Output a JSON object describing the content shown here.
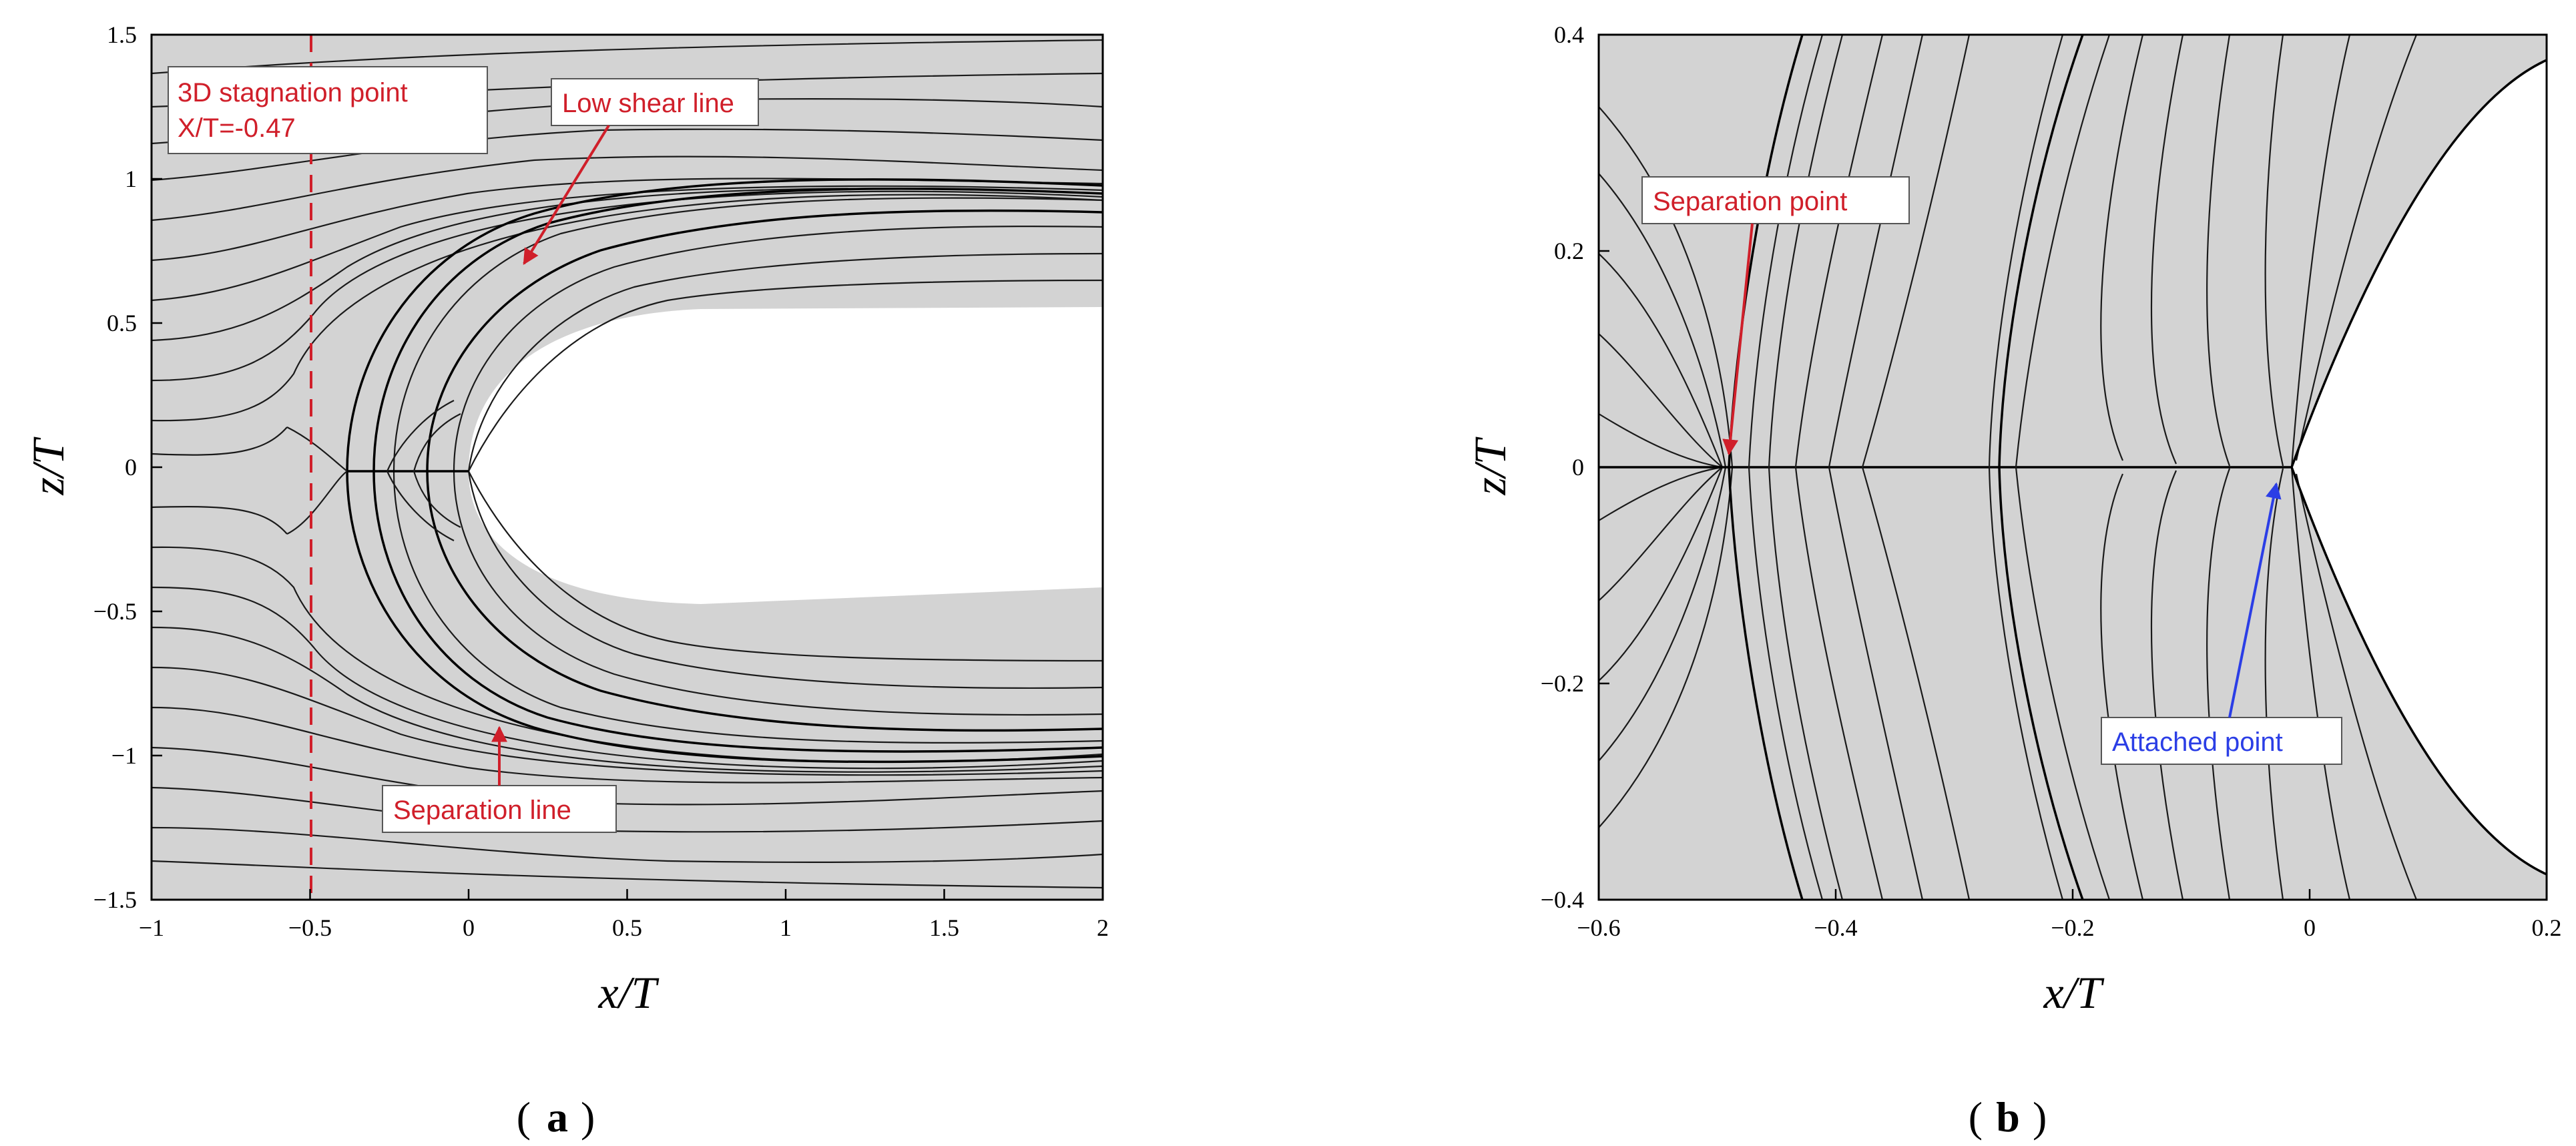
{
  "colors": {
    "field": "#d3d3d3",
    "streamline": "#1a1a1a",
    "red_annotation": "#d01f2a",
    "blue_annotation": "#2b3ee6",
    "axis": "#000000"
  },
  "panel_a": {
    "label": "a",
    "xlabel": "x/T",
    "ylabel": "z/T",
    "xlim": [
      -1,
      2
    ],
    "ylim": [
      -1.5,
      1.5
    ],
    "xticks": [
      "−1",
      "−0.5",
      "0",
      "0.5",
      "1",
      "1.5",
      "2"
    ],
    "yticks": [
      "1.5",
      "1",
      "0.5",
      "0",
      "−0.5",
      "−1",
      "−1.5"
    ],
    "stagnation_box": {
      "line1": "3D stagnation point",
      "line2": "X/T=-0.47",
      "x_position": -0.5
    },
    "low_shear_label": "Low shear line",
    "separation_line_label": "Separation line"
  },
  "panel_b": {
    "label": "b",
    "xlabel": "x/T",
    "ylabel": "z/T",
    "xlim": [
      -0.6,
      0.2
    ],
    "ylim": [
      -0.4,
      0.4
    ],
    "xticks": [
      "−0.6",
      "−0.4",
      "−0.2",
      "0",
      "0.2"
    ],
    "yticks": [
      "0.4",
      "0.2",
      "0",
      "−0.2",
      "−0.4"
    ],
    "separation_point_label": "Separation point",
    "attached_point_label": "Attached point"
  },
  "icons": {
    "arrow": "arrow-icon"
  }
}
